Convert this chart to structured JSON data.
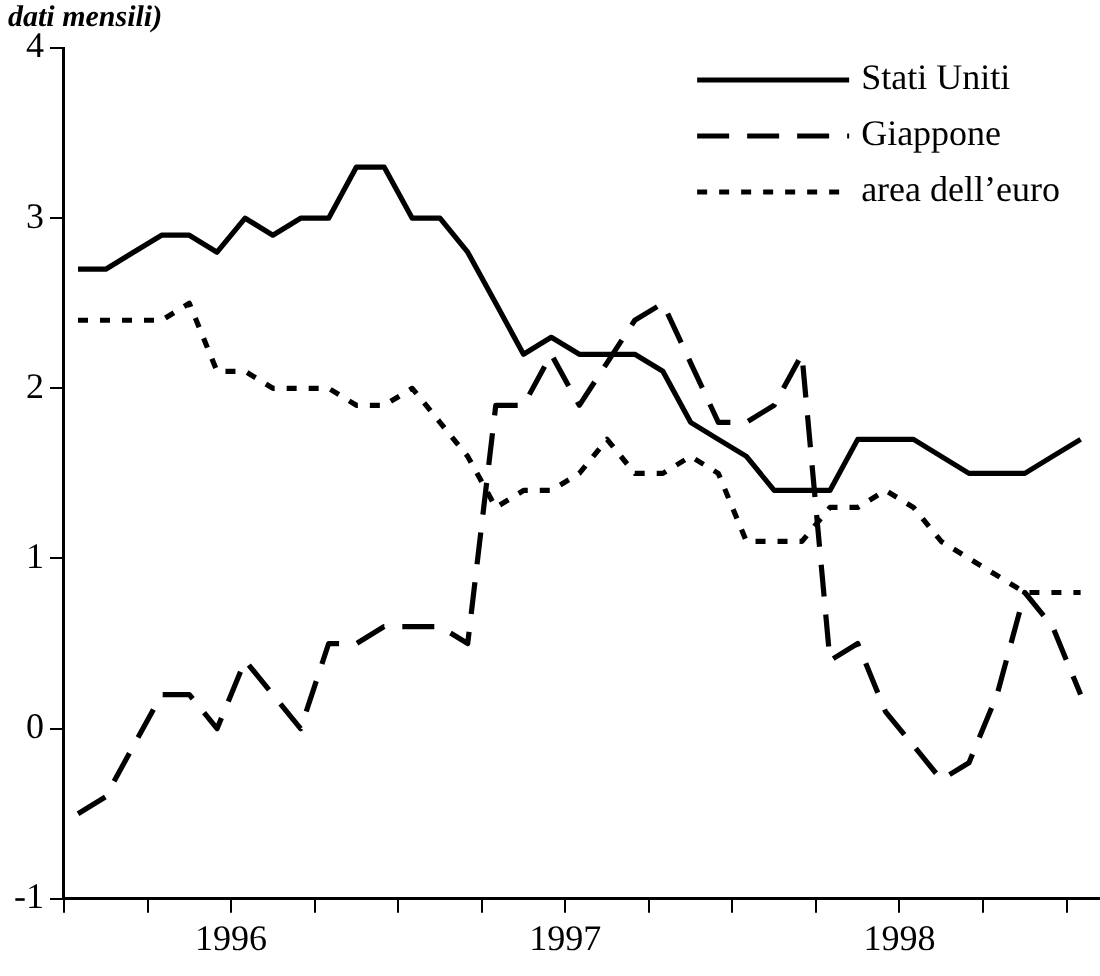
{
  "chart_data": {
    "type": "line",
    "title": "dati mensili)",
    "x": [
      1996.042,
      1996.125,
      1996.208,
      1996.292,
      1996.375,
      1996.458,
      1996.542,
      1996.625,
      1996.708,
      1996.792,
      1996.875,
      1996.958,
      1997.042,
      1997.125,
      1997.208,
      1997.292,
      1997.375,
      1997.458,
      1997.542,
      1997.625,
      1997.708,
      1997.792,
      1997.875,
      1997.958,
      1998.042,
      1998.125,
      1998.208,
      1998.292,
      1998.375,
      1998.458,
      1998.542,
      1998.625,
      1998.708,
      1998.792,
      1998.875,
      1998.958,
      1999.042
    ],
    "series": [
      {
        "name": "Stati Uniti",
        "color": "#000000",
        "line_style": "solid",
        "values": [
          2.7,
          2.7,
          2.8,
          2.9,
          2.9,
          2.8,
          3.0,
          2.9,
          3.0,
          3.0,
          3.3,
          3.3,
          3.0,
          3.0,
          2.8,
          2.5,
          2.2,
          2.3,
          2.2,
          2.2,
          2.2,
          2.1,
          1.8,
          1.7,
          1.6,
          1.4,
          1.4,
          1.4,
          1.7,
          1.7,
          1.7,
          1.6,
          1.5,
          1.5,
          1.5,
          1.6,
          1.7
        ]
      },
      {
        "name": "Giappone",
        "color": "#000000",
        "line_style": "dashed",
        "values": [
          -0.5,
          -0.4,
          -0.1,
          0.2,
          0.2,
          0.0,
          0.4,
          0.2,
          0.0,
          0.5,
          0.5,
          0.6,
          0.6,
          0.6,
          0.5,
          1.9,
          1.9,
          2.2,
          1.9,
          2.15,
          2.4,
          2.5,
          2.15,
          1.8,
          1.8,
          1.9,
          2.2,
          0.4,
          0.5,
          0.1,
          -0.1,
          -0.3,
          -0.2,
          0.2,
          0.8,
          0.6,
          0.2
        ]
      },
      {
        "name": "area dell’euro",
        "color": "#000000",
        "line_style": "dotted",
        "values": [
          2.4,
          2.4,
          2.4,
          2.4,
          2.5,
          2.1,
          2.1,
          2.0,
          2.0,
          2.0,
          1.9,
          1.9,
          2.0,
          1.8,
          1.6,
          1.3,
          1.4,
          1.4,
          1.5,
          1.7,
          1.5,
          1.5,
          1.6,
          1.5,
          1.1,
          1.1,
          1.1,
          1.3,
          1.3,
          1.4,
          1.3,
          1.1,
          1.0,
          0.9,
          0.8,
          0.8,
          0.8
        ]
      }
    ],
    "xlim": [
      1996,
      1999.1
    ],
    "xticks": [
      {
        "value": 1996,
        "label": null
      },
      {
        "value": 1996.25,
        "label": null
      },
      {
        "value": 1996.5,
        "label": "1996"
      },
      {
        "value": 1996.75,
        "label": null
      },
      {
        "value": 1997,
        "label": null
      },
      {
        "value": 1997.25,
        "label": null
      },
      {
        "value": 1997.5,
        "label": "1997"
      },
      {
        "value": 1997.75,
        "label": null
      },
      {
        "value": 1998,
        "label": null
      },
      {
        "value": 1998.25,
        "label": null
      },
      {
        "value": 1998.5,
        "label": "1998"
      },
      {
        "value": 1998.75,
        "label": null
      },
      {
        "value": 1999,
        "label": null
      }
    ],
    "ylim": [
      -1,
      4
    ],
    "yticks": [
      -1,
      0,
      1,
      2,
      3,
      4
    ],
    "grid": false,
    "legend": "top right"
  }
}
